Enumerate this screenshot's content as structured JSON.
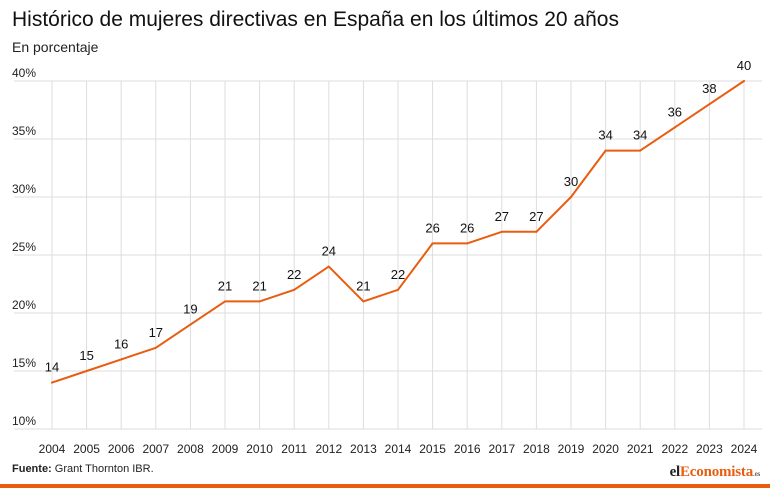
{
  "title": "Histórico de mujeres directivas en España en los últimos 20 años",
  "subtitle": "En porcentaje",
  "source": {
    "label": "Fuente:",
    "text": "Grant Thornton IBR."
  },
  "brand": {
    "prefix": "el",
    "accent": "Economista",
    "suffix": ".es"
  },
  "colors": {
    "line": "#e85d10",
    "grid": "#dddddd",
    "accent": "#e85d10"
  },
  "chart_data": {
    "type": "line",
    "title": "Histórico de mujeres directivas en España en los últimos 20 años",
    "subtitle": "En porcentaje",
    "xlabel": "",
    "ylabel": "",
    "categories": [
      "2004",
      "2005",
      "2006",
      "2007",
      "2008",
      "2009",
      "2010",
      "2011",
      "2012",
      "2013",
      "2014",
      "2015",
      "2016",
      "2017",
      "2018",
      "2019",
      "2020",
      "2021",
      "2022",
      "2023",
      "2024"
    ],
    "values": [
      14,
      15,
      16,
      17,
      19,
      21,
      21,
      22,
      24,
      21,
      22,
      26,
      26,
      27,
      27,
      30,
      34,
      34,
      36,
      38,
      40
    ],
    "data_labels": [
      "14",
      "15",
      "16",
      "17",
      "19",
      "21",
      "21",
      "22",
      "24",
      "21",
      "22",
      "26",
      "26",
      "27",
      "27",
      "30",
      "34",
      "34",
      "36",
      "38",
      "40"
    ],
    "y_ticks": [
      10,
      15,
      20,
      25,
      30,
      35,
      40
    ],
    "y_tick_labels": [
      "10%",
      "15%",
      "20%",
      "25%",
      "30%",
      "35%",
      "40%"
    ],
    "ylim": [
      10,
      40
    ],
    "grid": true,
    "legend": "none"
  }
}
